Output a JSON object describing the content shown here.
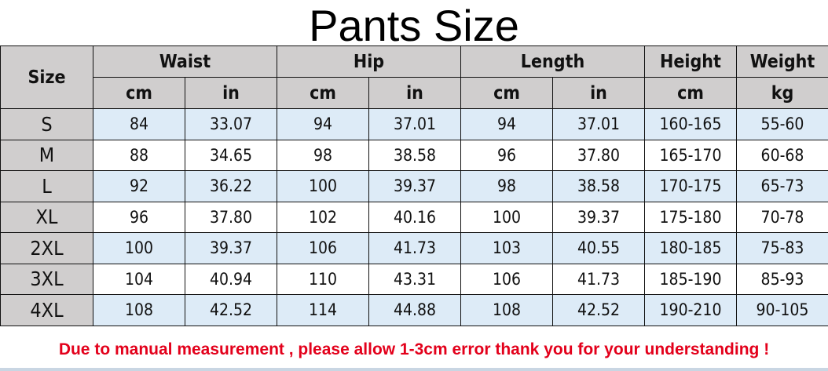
{
  "title": "Pants Size",
  "header": {
    "size": "Size",
    "groups": [
      "Waist",
      "Hip",
      "Length",
      "Height",
      "Weight"
    ],
    "units": [
      "cm",
      "in",
      "cm",
      "in",
      "cm",
      "in",
      "cm",
      "kg"
    ]
  },
  "rows": [
    {
      "size": "S",
      "values": [
        "84",
        "33.07",
        "94",
        "37.01",
        "94",
        "37.01",
        "160-165",
        "55-60"
      ]
    },
    {
      "size": "M",
      "values": [
        "88",
        "34.65",
        "98",
        "38.58",
        "96",
        "37.80",
        "165-170",
        "60-68"
      ]
    },
    {
      "size": "L",
      "values": [
        "92",
        "36.22",
        "100",
        "39.37",
        "98",
        "38.58",
        "170-175",
        "65-73"
      ]
    },
    {
      "size": "XL",
      "values": [
        "96",
        "37.80",
        "102",
        "40.16",
        "100",
        "39.37",
        "175-180",
        "70-78"
      ]
    },
    {
      "size": "2XL",
      "values": [
        "100",
        "39.37",
        "106",
        "41.73",
        "103",
        "40.55",
        "180-185",
        "75-83"
      ]
    },
    {
      "size": "3XL",
      "values": [
        "104",
        "40.94",
        "110",
        "43.31",
        "106",
        "41.73",
        "185-190",
        "85-93"
      ]
    },
    {
      "size": "4XL",
      "values": [
        "108",
        "42.52",
        "114",
        "44.88",
        "108",
        "42.52",
        "190-210",
        "90-105"
      ]
    }
  ],
  "note": "Due to manual measurement , please allow 1-3cm error thank you for your understanding !",
  "colors": {
    "header_bg": "#d0cece",
    "alt_row_bg": "#ddebf7",
    "note": "#e3001b"
  }
}
